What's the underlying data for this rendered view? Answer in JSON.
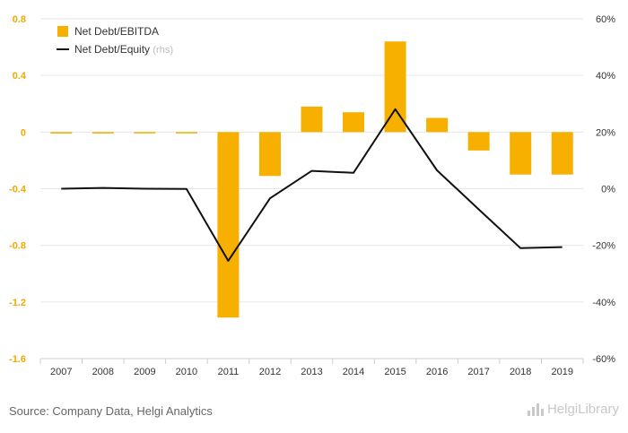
{
  "chart_data": {
    "type": "bar",
    "categories": [
      "2007",
      "2008",
      "2009",
      "2010",
      "2011",
      "2012",
      "2013",
      "2014",
      "2015",
      "2016",
      "2017",
      "2018",
      "2019"
    ],
    "series": [
      {
        "name": "Net Debt/EBITDA",
        "type": "bar",
        "axis": "left",
        "color": "#f7b000",
        "values": [
          -0.01,
          -0.01,
          -0.005,
          -0.005,
          -1.31,
          -0.31,
          0.18,
          0.14,
          0.64,
          0.1,
          -0.13,
          -0.3,
          -0.3
        ]
      },
      {
        "name": "Net Debt/Equity",
        "name_note": "(rhs)",
        "type": "line",
        "axis": "right",
        "color": "#111111",
        "values": [
          0,
          0.3,
          0,
          -0.1,
          -25.5,
          -3.4,
          6.3,
          5.6,
          28.1,
          6.5,
          -7.3,
          -21.0,
          -20.6
        ]
      }
    ],
    "ylim_left": [
      -1.6,
      0.8
    ],
    "yticks_left": [
      "0.8",
      "0.4",
      "0",
      "-0.4",
      "-0.8",
      "-1.2",
      "-1.6"
    ],
    "ylim_right": [
      -60,
      60
    ],
    "yticks_right": [
      "60%",
      "40%",
      "20%",
      "0%",
      "-20%",
      "-40%",
      "-60%"
    ],
    "grid": true,
    "legend_position": "top-left"
  },
  "footer": {
    "source": "Source: Company Data, Helgi Analytics",
    "brand": "HelgiLibrary"
  }
}
